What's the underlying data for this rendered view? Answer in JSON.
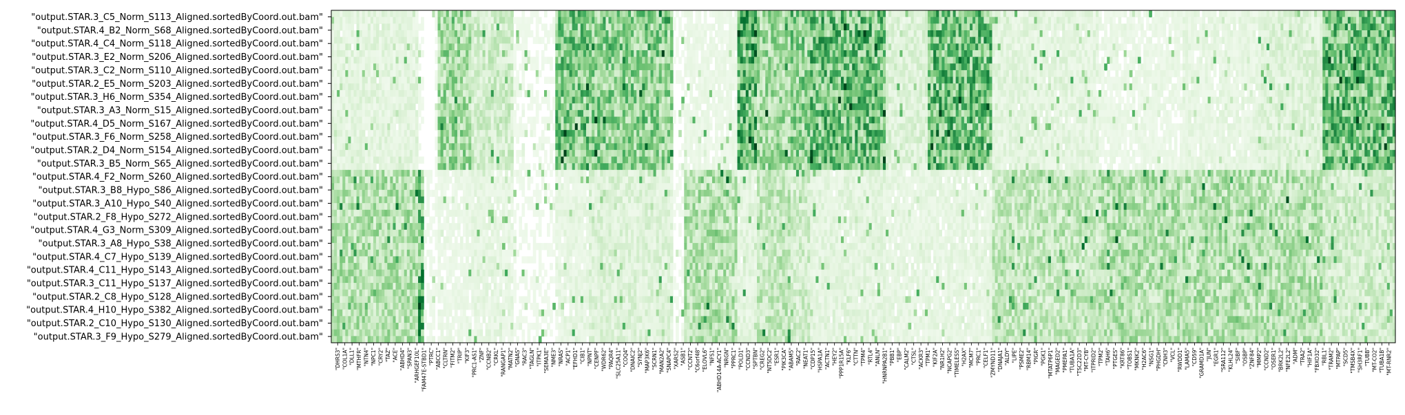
{
  "chart_data": {
    "type": "heatmap",
    "title": "",
    "xlabel": "",
    "ylabel": "",
    "colormap": "Greens",
    "color_low": "#f7fcf5",
    "color_high": "#00441b",
    "row_labels": [
      "\"output.STAR.3_C5_Norm_S113_Aligned.sortedByCoord.out.bam\"",
      "\"output.STAR.4_B2_Norm_S68_Aligned.sortedByCoord.out.bam\"",
      "\"output.STAR.4_C4_Norm_S118_Aligned.sortedByCoord.out.bam\"",
      "\"output.STAR.3_E2_Norm_S206_Aligned.sortedByCoord.out.bam\"",
      "\"output.STAR.3_C2_Norm_S110_Aligned.sortedByCoord.out.bam\"",
      "\"output.STAR.2_E5_Norm_S203_Aligned.sortedByCoord.out.bam\"",
      "\"output.STAR.3_H6_Norm_S354_Aligned.sortedByCoord.out.bam\"",
      "\"output.STAR.3_A3_Norm_S15_Aligned.sortedByCoord.out.bam\"",
      "\"output.STAR.4_D5_Norm_S167_Aligned.sortedByCoord.out.bam\"",
      "\"output.STAR.3_F6_Norm_S258_Aligned.sortedByCoord.out.bam\"",
      "\"output.STAR.2_D4_Norm_S154_Aligned.sortedByCoord.out.bam\"",
      "\"output.STAR.3_B5_Norm_S65_Aligned.sortedByCoord.out.bam\"",
      "\"output.STAR.4_F2_Norm_S260_Aligned.sortedByCoord.out.bam\"",
      "\"output.STAR.3_B8_Hypo_S86_Aligned.sortedByCoord.out.bam\"",
      "\"output.STAR.3_A10_Hypo_S40_Aligned.sortedByCoord.out.bam\"",
      "\"output.STAR.2_F8_Hypo_S272_Aligned.sortedByCoord.out.bam\"",
      "\"output.STAR.4_G3_Norm_S309_Aligned.sortedByCoord.out.bam\"",
      "\"output.STAR.3_A8_Hypo_S38_Aligned.sortedByCoord.out.bam\"",
      "\"output.STAR.4_C7_Hypo_S139_Aligned.sortedByCoord.out.bam\"",
      "\"output.STAR.4_C11_Hypo_S143_Aligned.sortedByCoord.out.bam\"",
      "\"output.STAR.3_C11_Hypo_S137_Aligned.sortedByCoord.out.bam\"",
      "\"output.STAR.2_C8_Hypo_S128_Aligned.sortedByCoord.out.bam\"",
      "\"output.STAR.4_H10_Hypo_S382_Aligned.sortedByCoord.out.bam\"",
      "\"output.STAR.2_C10_Hypo_S130_Aligned.sortedByCoord.out.bam\"",
      "\"output.STAR.3_F9_Hypo_S279_Aligned.sortedByCoord.out.bam\""
    ],
    "column_labels": [
      "\"DHRS3\"",
      "\"COL1A\"",
      "\"DLL1\"",
      "\"MTHFR\"",
      "\"NTN4\"",
      "\"NPC1\"",
      "\"CRY2\"",
      "\"TAZ\"",
      "\"ACE\"",
      "\"ABHD4\"",
      "\"SPAN3\"",
      "\"ARHGEF10L\"",
      "\"FAM47E-STBD1\"",
      "\"PTRC\"",
      "\"ABCC1\"",
      "\"CLTRN\"",
      "\"FITM2\"",
      "\"TRIP\"",
      "\"KIF3\"",
      "\"PRC1-AS1\"",
      "\"ZNF\"",
      "\"CCNB2\"",
      "\"CRKL\"",
      "\"RANGAP1\"",
      "\"MATN2\"",
      "\"GNAS\"",
      "\"RAC3\"",
      "\"TAGLN\"",
      "\"ITPK1\"",
      "\"SEMA3E\"",
      "\"NME3\"",
      "\"NRAS\"",
      "\"ACP1\"",
      "\"EFHD1\"",
      "\"CIB1\"",
      "\"NPNT\"",
      "\"CENPF\"",
      "\"WDR62\"",
      "\"PAQR4\"",
      "\"SLC25A11\"",
      "\"COQ4\"",
      "\"DNAIC2\"",
      "\"SYNJ2\"",
      "\"MAP3K6\"",
      "\"SCRN1\"",
      "\"MAN2A2\"",
      "\"SNAPC4\"",
      "\"XARS2\"",
      "\"ASB1\"",
      "\"CCNT2\"",
      "\"C6orf48\"",
      "\"ELOVL6\"",
      "\"NFS1\"",
      "\"ABHD14A-ACY1\"",
      "\"NRGN\"",
      "\"PPRC1\"",
      "\"POLD1\"",
      "\"CCND3\"",
      "\"SPTBN\"",
      "\"CREG2\"",
      "\"NT5DC2\"",
      "\"ESR1\"",
      "\"PIK3CA\"",
      "\"ABAM5\"",
      "\"RAC2\"",
      "\"NEAT1\"",
      "\"CDP15\"",
      "\"HSPA1A\"",
      "\"ACTN1\"",
      "\"HEY2\"",
      "\"PPP1R15A\"",
      "\"KLF6\"",
      "\"CTTN\"",
      "\"TPM4\"",
      "\"RTL4\"",
      "\"ANLN\"",
      "\"HNRNPA2B1\"",
      "\"PBB1\"",
      "\"EBP\"",
      "\"CALM2\"",
      "\"CTSL\"",
      "\"ACKR3\"",
      "\"TPM1\"",
      "\"KIF2A\"",
      "\"NR1H2\"",
      "\"NCAPG2\"",
      "\"TIMELESS\"",
      "\"H2AX\"",
      "\"MCM7\"",
      "\"PRC1\"",
      "\"CELF1\"",
      "\"ZMYND11\"",
      "\"DNAJA1\"",
      "\"ALDY\"",
      "\"LIPE\"",
      "\"PSME2\"",
      "\"RBM14\"",
      "\"PIGR\"",
      "\"PGK1\"",
      "\"MTATP6P1\"",
      "\"MAGED2\"",
      "\"PMEPA1\"",
      "\"TUBA1A\"",
      "\"TSC22D3\"",
      "\"MT-CYB\"",
      "\"ITPRID2\"",
      "\"TPM2\"",
      "\"TAH6\"",
      "\"PTGES\"",
      "\"KRT86\"",
      "\"TOBS1\"",
      "\"MKNK2\"",
      "\"H2AC6\"",
      "\"NSG1\"",
      "\"PHGDH\"",
      "\"CNH3\"",
      "\"VCL\"",
      "\"RWDD1\"",
      "\"LAMA5\"",
      "\"CD59\"",
      "\"GRAMD1A\"",
      "\"JUN\"",
      "\"EGR1\"",
      "\"SRA112\"",
      "\"KLHL24\"",
      "\"SIBF\"",
      "\"OSBP\"",
      "\"ZNF84\"",
      "\"MMP2\"",
      "\"CCND2\"",
      "\"OSER1\"",
      "\"BRK2L2\"",
      "\"NFE2L2\"",
      "\"ADM\"",
      "\"TRA2\"",
      "\"HIF1A\"",
      "\"FBXO32\"",
      "\"RBL1\"",
      "\"TRAM2\"",
      "\"MTPAP\"",
      "\"SCD5\"",
      "\"TMSB4X\"",
      "\"SH3RF1\"",
      "\"TUBB\"",
      "\"MT-CO2\"",
      "\"TUBA1B\"",
      "\"MT-RNR2\""
    ]
  }
}
